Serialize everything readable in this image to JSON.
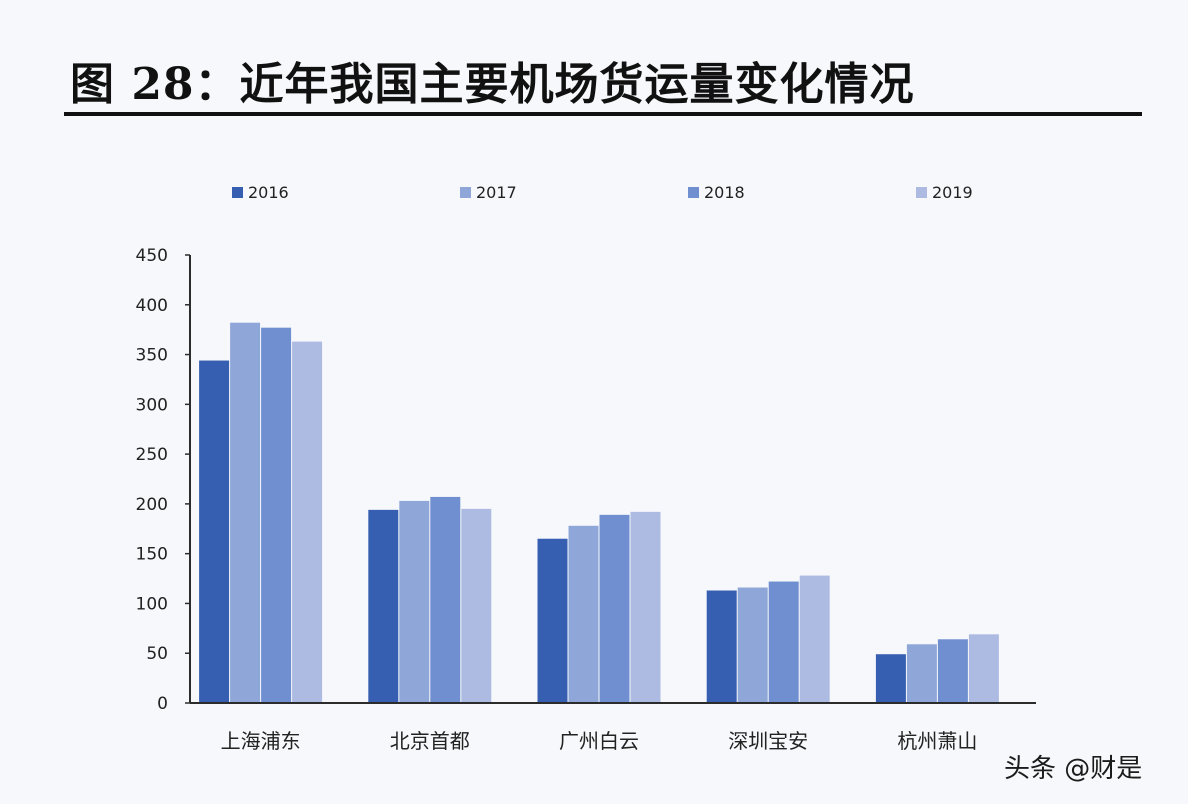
{
  "figure_title": "图 28：近年我国主要机场货运量变化情况",
  "watermark": "头条 @财是",
  "colors": {
    "series": [
      "#365fb1",
      "#8fa7d8",
      "#6f8fd0",
      "#adbbe2"
    ],
    "axis": "#2c2c2c"
  },
  "chart_data": {
    "type": "bar",
    "title": "",
    "xlabel": "",
    "ylabel": "",
    "ylim": [
      0,
      450
    ],
    "y_ticks": [
      0,
      50,
      100,
      150,
      200,
      250,
      300,
      350,
      400,
      450
    ],
    "categories": [
      "上海浦东",
      "北京首都",
      "广州白云",
      "深圳宝安",
      "杭州萧山"
    ],
    "legend_position": "top",
    "grid": false,
    "series": [
      {
        "name": "2016",
        "values": [
          344,
          194,
          165,
          113,
          49
        ]
      },
      {
        "name": "2017",
        "values": [
          382,
          203,
          178,
          116,
          59
        ]
      },
      {
        "name": "2018",
        "values": [
          377,
          207,
          189,
          122,
          64
        ]
      },
      {
        "name": "2019",
        "values": [
          363,
          195,
          192,
          128,
          69
        ]
      }
    ]
  }
}
